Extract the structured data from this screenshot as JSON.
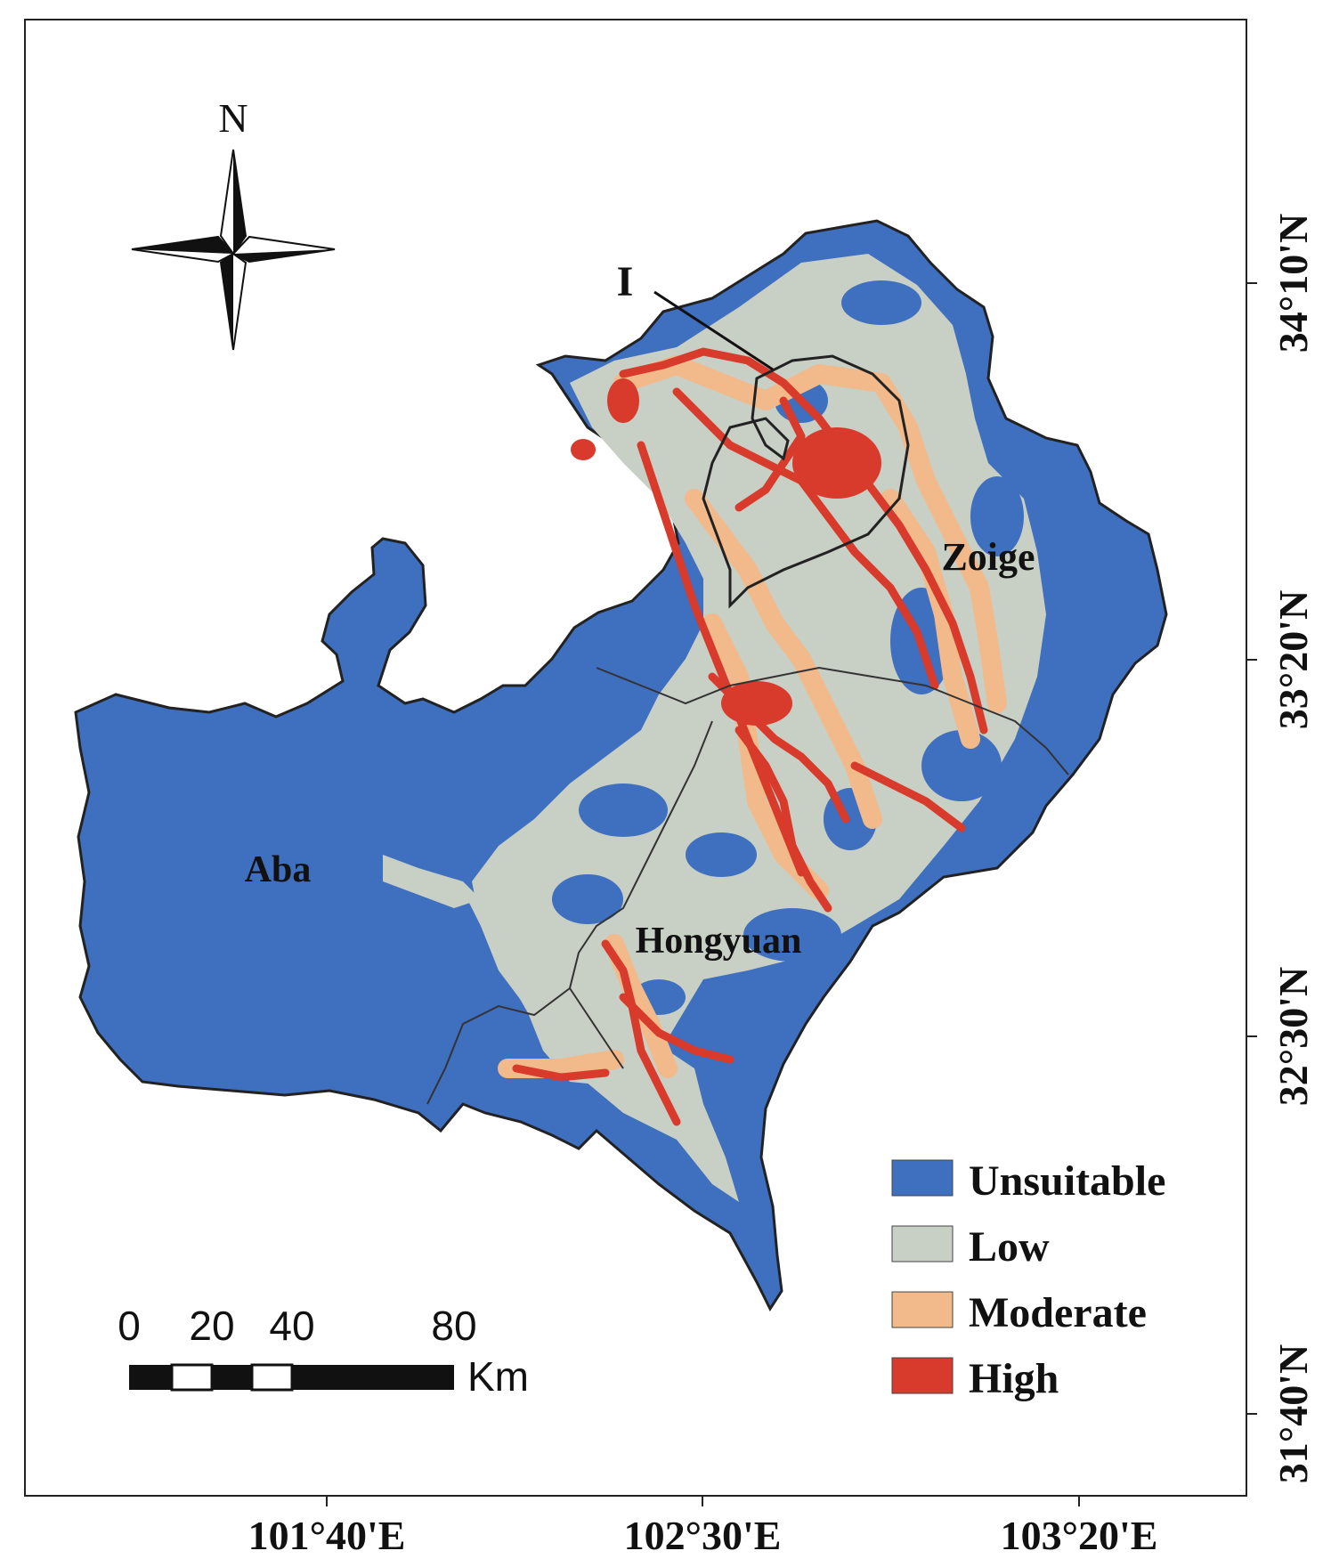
{
  "north_arrow": {
    "label": "N"
  },
  "region_labels": {
    "zoige": "Zoige",
    "aba": "Aba",
    "hongyuan": "Hongyuan",
    "inset_marker": "I"
  },
  "longitude_labels": [
    "101°40'E",
    "102°30'E",
    "103°20'E"
  ],
  "latitude_labels": [
    "34°10'N",
    "33°20'N",
    "32°30'N",
    "31°40'N"
  ],
  "legend": {
    "items": [
      {
        "label": "Unsuitable",
        "color": "#3f6fbf"
      },
      {
        "label": "Low",
        "color": "#c8cfc4"
      },
      {
        "label": "Moderate",
        "color": "#f2b98b"
      },
      {
        "label": "High",
        "color": "#d83a2c"
      }
    ]
  },
  "scale_bar": {
    "ticks": [
      "0",
      "20",
      "40",
      "80"
    ],
    "unit": "Km"
  }
}
